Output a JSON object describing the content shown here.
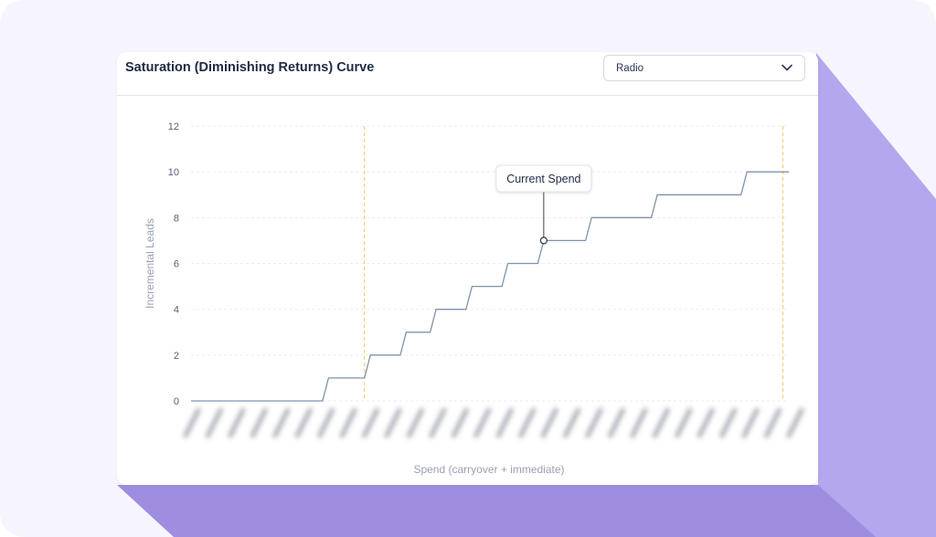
{
  "card": {
    "title": "Saturation (Diminishing Returns) Curve"
  },
  "channel_select": {
    "selected": "Radio",
    "icon": "chevron-down-icon"
  },
  "colors": {
    "background": "#f6f5fe",
    "accent_shadow": "#a99be6",
    "line": "#7f93ad",
    "reference_line": "#f3d07a"
  },
  "chart_data": {
    "type": "line",
    "title": "",
    "xlabel": "Spend (carryover + immediate)",
    "ylabel": "Incremental Leads",
    "ylim": [
      0,
      12
    ],
    "yticks": [
      0,
      2,
      4,
      6,
      8,
      10,
      12
    ],
    "x_tick_labels_obscured": true,
    "grid": "horizontal dashed",
    "series": [
      {
        "values": [
          {
            "x": 0.0,
            "y": 0
          },
          {
            "x": 0.22,
            "y": 0
          },
          {
            "x": 0.23,
            "y": 1
          },
          {
            "x": 0.29,
            "y": 1
          },
          {
            "x": 0.3,
            "y": 2
          },
          {
            "x": 0.35,
            "y": 2
          },
          {
            "x": 0.36,
            "y": 3
          },
          {
            "x": 0.4,
            "y": 3
          },
          {
            "x": 0.41,
            "y": 4
          },
          {
            "x": 0.46,
            "y": 4
          },
          {
            "x": 0.47,
            "y": 5
          },
          {
            "x": 0.52,
            "y": 5
          },
          {
            "x": 0.53,
            "y": 6
          },
          {
            "x": 0.58,
            "y": 6
          },
          {
            "x": 0.59,
            "y": 7
          },
          {
            "x": 0.66,
            "y": 7
          },
          {
            "x": 0.67,
            "y": 8
          },
          {
            "x": 0.77,
            "y": 8
          },
          {
            "x": 0.78,
            "y": 9
          },
          {
            "x": 0.92,
            "y": 9
          },
          {
            "x": 0.93,
            "y": 10
          },
          {
            "x": 1.0,
            "y": 10
          }
        ]
      }
    ],
    "reference_lines_x": [
      0.29,
      0.99
    ],
    "current_spend": {
      "label": "Current Spend",
      "x": 0.59,
      "y": 7
    }
  }
}
